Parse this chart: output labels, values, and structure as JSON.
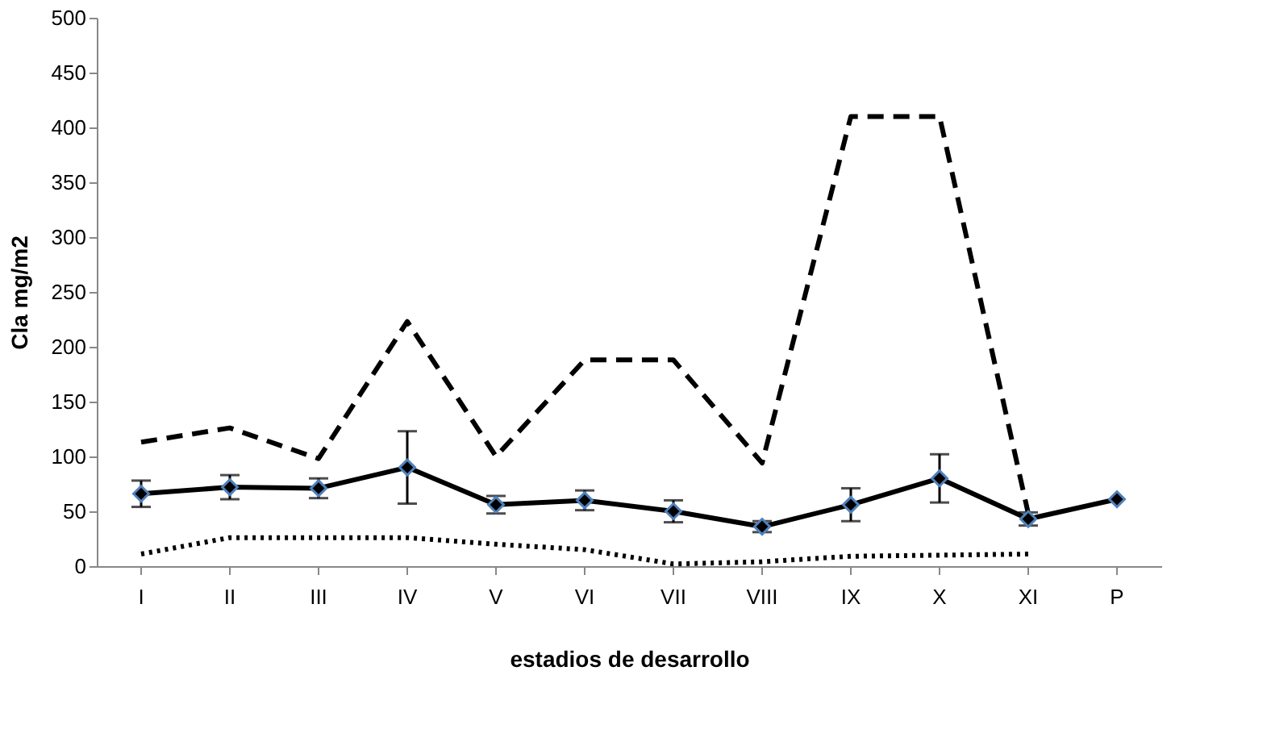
{
  "chart_data": {
    "type": "line",
    "xlabel": "estadios de desarrollo",
    "ylabel": "Cla mg/m2",
    "categories": [
      "I",
      "II",
      "III",
      "IV",
      "V",
      "VI",
      "VII",
      "VIII",
      "IX",
      "X",
      "XI",
      "P"
    ],
    "series": [
      {
        "color": "#000000",
        "line_style": "dashed",
        "marker": "none",
        "values": [
          113,
          126,
          98,
          223,
          100,
          188,
          188,
          94,
          410,
          410,
          48,
          null
        ]
      },
      {
        "color": "#000000",
        "line_style": "solid",
        "marker": "diamond",
        "values": [
          66,
          72,
          71,
          90,
          56,
          60,
          50,
          36,
          56,
          80,
          43,
          61
        ],
        "errors": [
          12,
          11,
          9,
          33,
          8,
          9,
          10,
          5,
          15,
          22,
          6,
          null
        ]
      },
      {
        "color": "#000000",
        "line_style": "dotted",
        "marker": "none",
        "values": [
          11,
          26,
          26,
          26,
          20,
          15,
          2,
          4,
          9,
          10,
          11,
          null
        ]
      }
    ],
    "ylim": [
      0,
      500
    ],
    "yticks": [
      0,
      50,
      100,
      150,
      200,
      250,
      300,
      350,
      400,
      450,
      500
    ],
    "grid": false
  }
}
